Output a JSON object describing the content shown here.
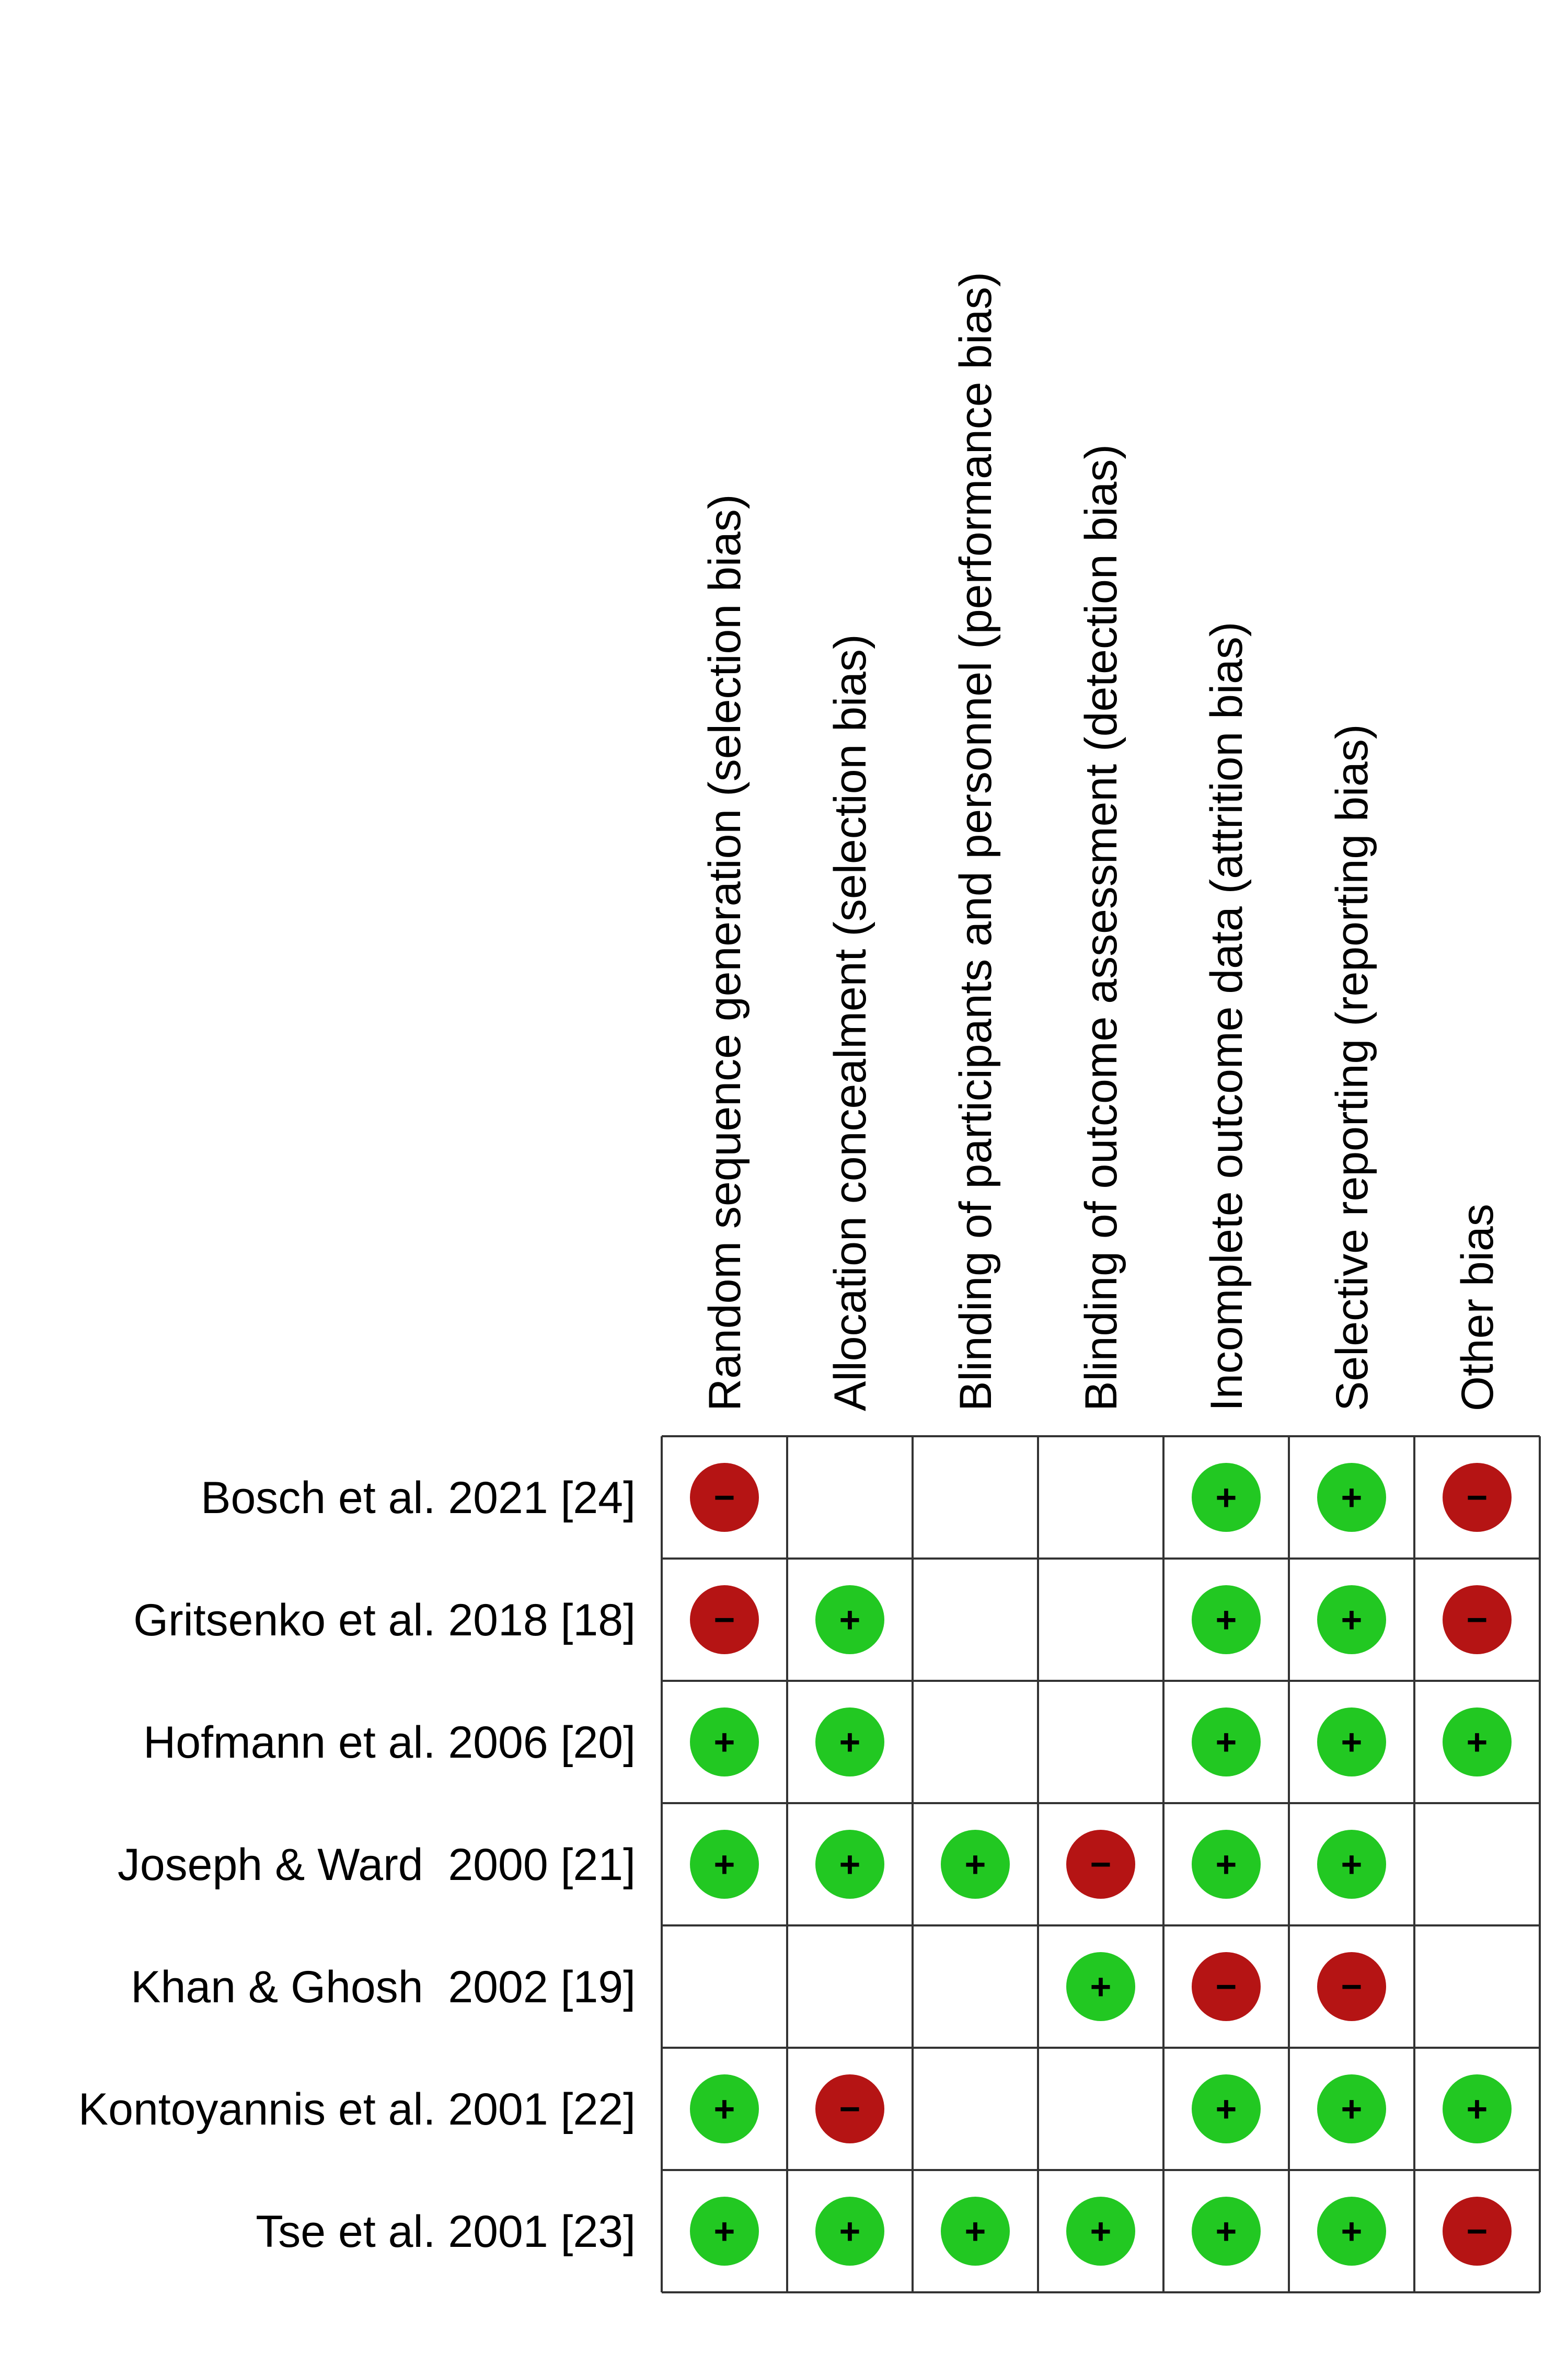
{
  "columns": [
    "Random sequence generation (selection bias)",
    "Allocation concealment (selection bias)",
    "Blinding of participants and personnel (performance bias)",
    "Blinding of outcome assessment (detection bias)",
    "Incomplete outcome data (attrition bias)",
    "Selective reporting (reporting bias)",
    "Other bias"
  ],
  "colors": {
    "+": "#22c822",
    "−": "#b51414"
  },
  "rows": [
    {
      "study": "Bosch et al. 2021 [24]",
      "judgments": [
        "−",
        null,
        null,
        null,
        "+",
        "+",
        "−"
      ]
    },
    {
      "study": "Gritsenko et al. 2018 [18]",
      "judgments": [
        "−",
        "+",
        null,
        null,
        "+",
        "+",
        "−"
      ]
    },
    {
      "study": "Hofmann et al. 2006 [20]",
      "judgments": [
        "+",
        "+",
        null,
        null,
        "+",
        "+",
        "+"
      ]
    },
    {
      "study": "Joseph & Ward  2000 [21]",
      "judgments": [
        "+",
        "+",
        "+",
        "−",
        "+",
        "+",
        null
      ]
    },
    {
      "study": "Khan & Ghosh  2002 [19]",
      "judgments": [
        null,
        null,
        null,
        "+",
        "−",
        "−",
        null
      ]
    },
    {
      "study": "Kontoyannis et al. 2001 [22]",
      "judgments": [
        "+",
        "−",
        null,
        null,
        "+",
        "+",
        "+"
      ]
    },
    {
      "study": "Tse et al. 2001 [23]",
      "judgments": [
        "+",
        "+",
        "+",
        "+",
        "+",
        "+",
        "−"
      ]
    }
  ]
}
